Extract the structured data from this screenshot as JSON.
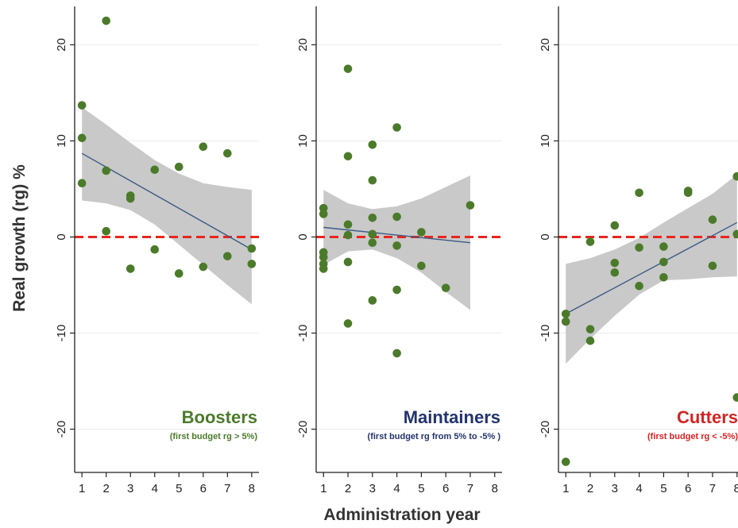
{
  "chart_data": {
    "type": "scatter",
    "ylabel": "Real growth (rg) %",
    "xlabel": "Administration year",
    "x_ticks": [
      1,
      2,
      3,
      4,
      5,
      6,
      7,
      8
    ],
    "y_ticks": [
      -20,
      -10,
      0,
      10,
      20
    ],
    "xlim": [
      0.7,
      8.3
    ],
    "ylim": [
      -24.5,
      24
    ],
    "reference_line": 0,
    "reference_line_color": "#e8251e",
    "point_color": "#4b7b2a",
    "fit_line_color": "#3b5a86",
    "ci_band_color": "#c9c9c9",
    "panels": [
      {
        "title": "Boosters",
        "subtitle": "(first budget rg > 5%)",
        "title_color": "#4b7b2a",
        "points": [
          [
            1,
            13.7
          ],
          [
            1,
            10.3
          ],
          [
            1,
            5.6
          ],
          [
            2,
            22.5
          ],
          [
            2,
            6.9
          ],
          [
            2,
            0.6
          ],
          [
            3,
            4.3
          ],
          [
            3,
            4.0
          ],
          [
            3,
            -3.3
          ],
          [
            4,
            7.0
          ],
          [
            4,
            -1.3
          ],
          [
            5,
            7.3
          ],
          [
            5,
            -3.8
          ],
          [
            6,
            9.4
          ],
          [
            6,
            -3.1
          ],
          [
            7,
            8.7
          ],
          [
            7,
            -2.0
          ],
          [
            8,
            -1.2
          ],
          [
            8,
            -2.8
          ]
        ],
        "fit": [
          [
            1,
            8.7
          ],
          [
            8,
            -1.3
          ]
        ],
        "ci_upper": [
          [
            1,
            13.5
          ],
          [
            2,
            11.7
          ],
          [
            3,
            9.8
          ],
          [
            4,
            8.0
          ],
          [
            5,
            6.6
          ],
          [
            6,
            5.6
          ],
          [
            7,
            5.2
          ],
          [
            8,
            4.9
          ]
        ],
        "ci_lower": [
          [
            1,
            3.8
          ],
          [
            2,
            3.5
          ],
          [
            3,
            2.8
          ],
          [
            4,
            1.3
          ],
          [
            5,
            -0.8
          ],
          [
            6,
            -2.9
          ],
          [
            7,
            -5.0
          ],
          [
            8,
            -7.0
          ]
        ]
      },
      {
        "title": "Maintainers",
        "subtitle": "(first budget rg from 5% to -5% )",
        "title_color": "#23336d",
        "points": [
          [
            1,
            3.0
          ],
          [
            1,
            2.4
          ],
          [
            1,
            -1.6
          ],
          [
            1,
            -2.1
          ],
          [
            1,
            -2.8
          ],
          [
            1,
            -3.3
          ],
          [
            2,
            17.5
          ],
          [
            2,
            8.4
          ],
          [
            2,
            1.3
          ],
          [
            2,
            0.2
          ],
          [
            2,
            -2.6
          ],
          [
            2,
            -9.0
          ],
          [
            3,
            9.6
          ],
          [
            3,
            5.9
          ],
          [
            3,
            2.0
          ],
          [
            3,
            0.3
          ],
          [
            3,
            -0.6
          ],
          [
            3,
            -6.6
          ],
          [
            4,
            11.4
          ],
          [
            4,
            2.1
          ],
          [
            4,
            -0.9
          ],
          [
            4,
            -5.5
          ],
          [
            4,
            -12.1
          ],
          [
            5,
            0.5
          ],
          [
            5,
            -3.0
          ],
          [
            6,
            -5.3
          ],
          [
            7,
            3.3
          ]
        ],
        "fit": [
          [
            1,
            1.0
          ],
          [
            7,
            -0.6
          ]
        ],
        "ci_upper": [
          [
            1,
            4.9
          ],
          [
            2,
            3.5
          ],
          [
            3,
            2.9
          ],
          [
            4,
            3.2
          ],
          [
            5,
            4.0
          ],
          [
            6,
            5.2
          ],
          [
            7,
            6.4
          ]
        ],
        "ci_lower": [
          [
            1,
            -2.9
          ],
          [
            2,
            -1.5
          ],
          [
            3,
            -1.3
          ],
          [
            4,
            -2.2
          ],
          [
            5,
            -3.7
          ],
          [
            6,
            -5.7
          ],
          [
            7,
            -7.6
          ]
        ]
      },
      {
        "title": "Cutters",
        "subtitle": "(first budget rg < -5%)",
        "title_color": "#d62222",
        "points": [
          [
            1,
            -8.0
          ],
          [
            1,
            -8.8
          ],
          [
            1,
            -23.4
          ],
          [
            2,
            -0.5
          ],
          [
            2,
            -9.6
          ],
          [
            2,
            -10.8
          ],
          [
            3,
            1.2
          ],
          [
            3,
            -2.7
          ],
          [
            3,
            -3.7
          ],
          [
            4,
            4.6
          ],
          [
            4,
            -1.1
          ],
          [
            4,
            -5.1
          ],
          [
            5,
            -1.0
          ],
          [
            5,
            -2.6
          ],
          [
            5,
            -4.2
          ],
          [
            6,
            4.8
          ],
          [
            6,
            4.6
          ],
          [
            7,
            1.8
          ],
          [
            7,
            -3.0
          ],
          [
            8,
            6.3
          ],
          [
            8,
            0.3
          ],
          [
            8,
            -16.7
          ]
        ],
        "fit": [
          [
            1,
            -8.0
          ],
          [
            8,
            1.5
          ]
        ],
        "ci_upper": [
          [
            1,
            -2.8
          ],
          [
            2,
            -2.2
          ],
          [
            3,
            -1.3
          ],
          [
            4,
            -0.1
          ],
          [
            5,
            1.5
          ],
          [
            6,
            3.0
          ],
          [
            7,
            4.5
          ],
          [
            8,
            6.5
          ]
        ],
        "ci_lower": [
          [
            1,
            -13.2
          ],
          [
            2,
            -10.6
          ],
          [
            3,
            -8.2
          ],
          [
            4,
            -6.0
          ],
          [
            5,
            -4.5
          ],
          [
            6,
            -4.4
          ],
          [
            7,
            -4.2
          ],
          [
            8,
            -4.1
          ]
        ]
      }
    ]
  }
}
